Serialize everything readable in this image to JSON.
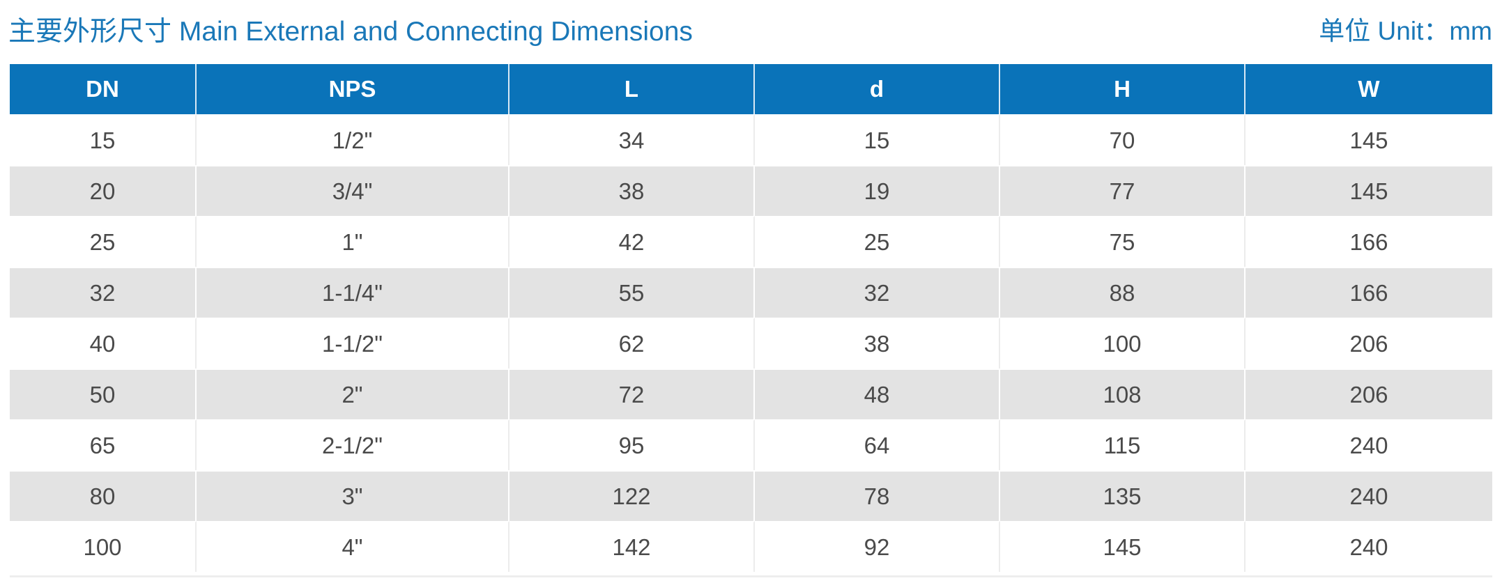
{
  "header": {
    "title": "主要外形尺寸 Main External and Connecting Dimensions",
    "unit": "单位 Unit：mm"
  },
  "table": {
    "columns": [
      "DN",
      "NPS",
      "L",
      "d",
      "H",
      "W"
    ],
    "rows": [
      [
        "15",
        "1/2\"",
        "34",
        "15",
        "70",
        "145"
      ],
      [
        "20",
        "3/4\"",
        "38",
        "19",
        "77",
        "145"
      ],
      [
        "25",
        "1\"",
        "42",
        "25",
        "75",
        "166"
      ],
      [
        "32",
        "1-1/4\"",
        "55",
        "32",
        "88",
        "166"
      ],
      [
        "40",
        "1-1/2\"",
        "62",
        "38",
        "100",
        "206"
      ],
      [
        "50",
        "2\"",
        "72",
        "48",
        "108",
        "206"
      ],
      [
        "65",
        "2-1/2\"",
        "95",
        "64",
        "115",
        "240"
      ],
      [
        "80",
        "3\"",
        "122",
        "78",
        "135",
        "240"
      ],
      [
        "100",
        "4\"",
        "142",
        "92",
        "145",
        "240"
      ]
    ]
  },
  "colors": {
    "header_bg": "#0a73b9",
    "title_text": "#1a78b8",
    "stripe": "#e3e3e3"
  }
}
